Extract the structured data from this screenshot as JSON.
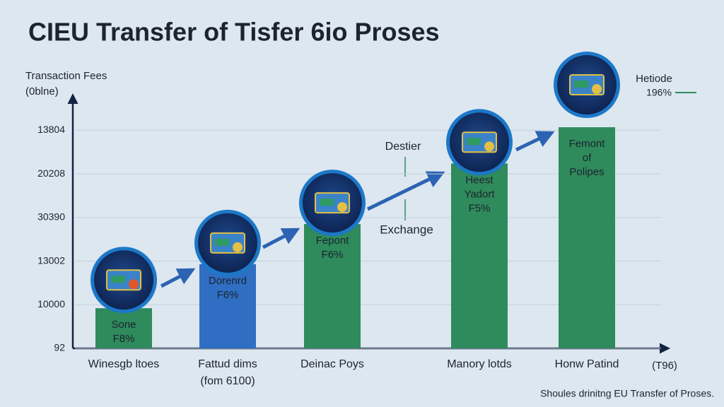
{
  "chart_data": {
    "type": "bar",
    "title": "CIEU Transfer of Tisfer 6io Proses",
    "y_label": "Transaction Fees",
    "y_label_sub": "(0blne)",
    "categories": [
      "Winesgb ltoes",
      "Fattud dims",
      "Deinac Poys",
      "Manory lotds",
      "Honw Patind"
    ],
    "category_notes": [
      null,
      "(fom 6100)",
      null,
      null,
      null
    ],
    "values": [
      0.92,
      1.93,
      2.85,
      4.24,
      5.07
    ],
    "colors": [
      "#2f8a5c",
      "#2f6ec2",
      "#2f8a5c",
      "#2f8a5c",
      "#2f8a5c"
    ],
    "bar_labels": [
      [
        "Sone",
        "F8%"
      ],
      [
        "Dorenrd",
        "F6%"
      ],
      [
        "Fepont",
        "F6%"
      ],
      [
        "Heest",
        "Yadort",
        "F5%"
      ],
      [
        "Femont",
        "of",
        "Polipes"
      ]
    ],
    "ylim": [
      0,
      5.8
    ],
    "yticks": [
      {
        "value": 0,
        "label": "92"
      },
      {
        "value": 1,
        "label": "10000"
      },
      {
        "value": 2,
        "label": "13002"
      },
      {
        "value": 3,
        "label": "30390"
      },
      {
        "value": 4,
        "label": "20208"
      },
      {
        "value": 5,
        "label": "13804"
      }
    ],
    "grid": true,
    "x_end_label": "(T96)",
    "annotations": [
      "Destier",
      "Exchange",
      "Hetiode",
      "196%"
    ],
    "footer": "Shoules drinitng EU Transfer of Proses."
  }
}
